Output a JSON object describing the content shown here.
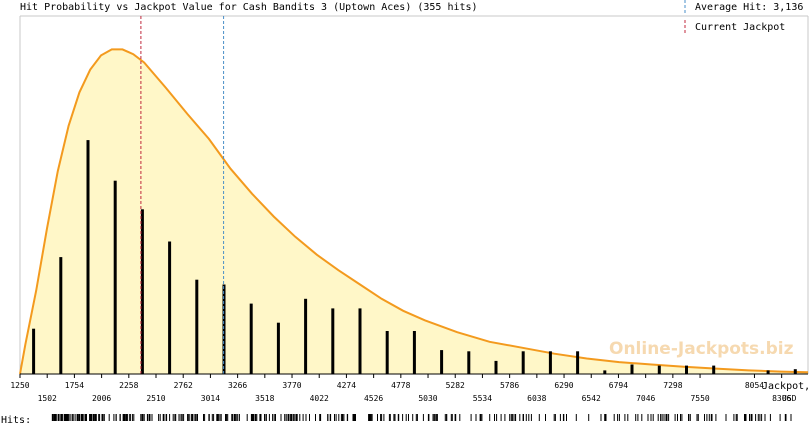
{
  "chart_data": {
    "type": "bar",
    "title": "Hit Probability vs Jackpot Value for Cash Bandits 3 (Uptown Aces) (355 hits)",
    "xlabel_line1": "Jackpot,",
    "xlabel_line2": "USD",
    "hits_label": "Hits:",
    "watermark": "Online-Jackpots.biz",
    "xlim": [
      1250,
      8550
    ],
    "x_ticks_top": [
      "1250",
      "1754",
      "2258",
      "2762",
      "3266",
      "3770",
      "4274",
      "4778",
      "5282",
      "5786",
      "6290",
      "6794",
      "7298",
      "8054"
    ],
    "x_ticks_bottom": [
      "1502",
      "2006",
      "2510",
      "3014",
      "3518",
      "4022",
      "4526",
      "5030",
      "5534",
      "6038",
      "6542",
      "7046",
      "7550",
      "8306"
    ],
    "average_hit": 3136,
    "current_jackpot": 2370,
    "legend": [
      {
        "label": "Average Hit: 3,136",
        "color": "#4a8fc8",
        "style": "dashed"
      },
      {
        "label": "Current Jackpot",
        "color": "#c0283c",
        "style": "dashed"
      }
    ],
    "bars": {
      "x": [
        1376,
        1628,
        1880,
        2132,
        2384,
        2636,
        2888,
        3140,
        3392,
        3644,
        3896,
        4148,
        4400,
        4652,
        4904,
        5156,
        5408,
        5660,
        5912,
        6164,
        6416,
        6668,
        6920,
        7172,
        7424,
        7676,
        8180,
        8432
      ],
      "values": [
        38,
        98,
        196,
        162,
        138,
        111,
        79,
        75,
        59,
        43,
        63,
        55,
        55,
        36,
        36,
        20,
        19,
        11,
        19,
        19,
        19,
        3,
        8,
        7,
        7,
        7,
        3,
        4
      ]
    },
    "curve": {
      "x": [
        1250,
        1300,
        1400,
        1500,
        1600,
        1700,
        1800,
        1900,
        2000,
        2100,
        2200,
        2300,
        2400,
        2600,
        2800,
        3000,
        3200,
        3400,
        3600,
        3800,
        4000,
        4200,
        4400,
        4600,
        4800,
        5000,
        5300,
        5600,
        5900,
        6200,
        6500,
        6800,
        7100,
        7400,
        7700,
        8000,
        8300,
        8550
      ],
      "values": [
        0,
        25,
        70,
        122,
        170,
        208,
        236,
        255,
        267,
        272,
        272,
        268,
        261,
        240,
        218,
        197,
        172,
        151,
        132,
        115,
        100,
        87,
        75,
        63,
        53,
        45,
        35,
        27,
        22,
        17,
        13,
        10,
        8,
        6,
        4.5,
        3,
        2,
        1.5
      ]
    },
    "ylim": [
      0,
      300
    ],
    "hit_marks_count": 355,
    "colors": {
      "fill": "#fff7c8",
      "curve": "#f39a1e",
      "bar": "#000000",
      "average": "#4a8fc8",
      "current": "#c0283c",
      "watermark": "#f6d9b0"
    }
  }
}
